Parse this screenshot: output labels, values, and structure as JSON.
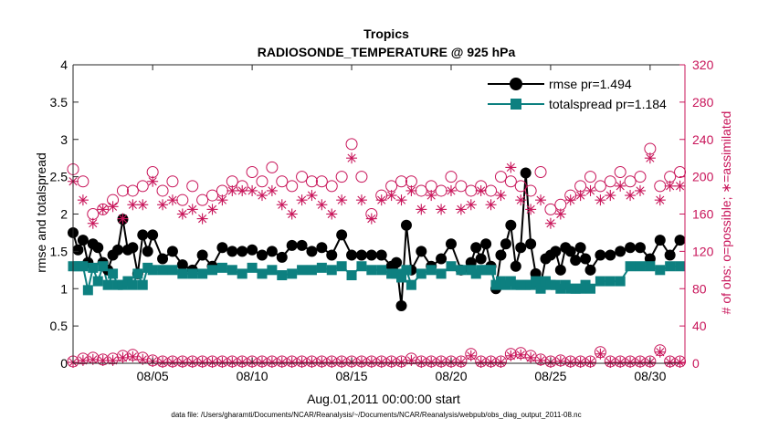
{
  "chart_data": {
    "type": "line",
    "title": "Tropics",
    "subtitle": "RADIOSONDE_TEMPERATURE @ 925 hPa",
    "xlabel": "Aug.01,2011 00:00:00 start",
    "ylabel": "rmse and totalspread",
    "y2label": "# of obs: o=possible; ∗=assimilated",
    "footnote": "data file: /Users/gharamti/Documents/NCAR/Reanalysis/~/Documents/NCAR/Reanalysis/webpub/obs_diag_output_2011-08.nc",
    "xlim": [
      1.0,
      31.75
    ],
    "ylim": [
      0,
      4
    ],
    "y2lim": [
      0,
      320
    ],
    "xticks": [
      5,
      10,
      15,
      20,
      25,
      30
    ],
    "xtick_labels": [
      "08/05",
      "08/10",
      "08/15",
      "08/20",
      "08/25",
      "08/30"
    ],
    "yticks": [
      0,
      0.5,
      1,
      1.5,
      2,
      2.5,
      3,
      3.5,
      4
    ],
    "ytick_labels": [
      "0",
      "0.5",
      "1",
      "1.5",
      "2",
      "2.5",
      "3",
      "3.5",
      "4"
    ],
    "y2ticks": [
      0,
      40,
      80,
      120,
      160,
      200,
      240,
      280,
      320
    ],
    "y2tick_labels": [
      "0",
      "40",
      "80",
      "120",
      "160",
      "200",
      "240",
      "280",
      "320"
    ],
    "legend": {
      "location": "top-right",
      "entries": [
        "rmse pr=1.494",
        "totalspread pr=1.184"
      ]
    },
    "colors": {
      "rmse": "#000000",
      "spread": "#0d8080",
      "obs": "#c8155a"
    },
    "series": [
      {
        "name": "rmse pr=1.494",
        "axis": "left",
        "marker": "circle",
        "x": [
          1.0,
          1.25,
          1.5,
          1.75,
          2.0,
          2.25,
          2.5,
          2.75,
          3.0,
          3.25,
          3.5,
          3.75,
          4.0,
          4.25,
          4.5,
          4.75,
          5.0,
          5.5,
          6.0,
          6.5,
          7.0,
          7.5,
          8.0,
          8.5,
          9.0,
          9.5,
          10.0,
          10.5,
          11.0,
          11.5,
          12.0,
          12.5,
          13.0,
          13.5,
          14.0,
          14.5,
          15.0,
          15.5,
          16.0,
          16.5,
          17.0,
          17.25,
          17.5,
          17.75,
          18.0,
          18.5,
          19.0,
          19.5,
          20.0,
          20.5,
          21.0,
          21.25,
          21.5,
          21.75,
          22.0,
          22.25,
          22.5,
          22.75,
          23.0,
          23.25,
          23.5,
          23.75,
          24.0,
          24.25,
          24.5,
          24.75,
          25.0,
          25.25,
          25.5,
          25.75,
          26.0,
          26.25,
          26.5,
          26.75,
          27.0,
          27.5,
          28.0,
          28.5,
          29.0,
          29.5,
          30.0,
          30.5,
          31.0,
          31.5
        ],
        "values": [
          1.75,
          1.52,
          1.65,
          1.35,
          1.6,
          1.55,
          1.35,
          1.25,
          1.45,
          1.52,
          1.93,
          1.52,
          1.55,
          1.2,
          1.72,
          1.5,
          1.72,
          1.4,
          1.5,
          1.32,
          1.25,
          1.45,
          1.3,
          1.55,
          1.5,
          1.5,
          1.52,
          1.45,
          1.5,
          1.42,
          1.58,
          1.58,
          1.5,
          1.55,
          1.45,
          1.72,
          1.45,
          1.45,
          1.45,
          1.45,
          1.3,
          1.35,
          0.77,
          1.85,
          1.25,
          1.5,
          1.3,
          1.4,
          1.6,
          1.25,
          1.35,
          1.55,
          1.4,
          1.6,
          1.3,
          1.0,
          1.45,
          1.6,
          1.85,
          1.3,
          1.55,
          2.55,
          1.6,
          1.2,
          1.05,
          1.4,
          1.45,
          1.5,
          1.25,
          1.55,
          1.5,
          1.38,
          1.55,
          1.4,
          1.25,
          1.45,
          1.45,
          1.5,
          1.55,
          1.55,
          1.4,
          1.65,
          1.45,
          1.65
        ]
      },
      {
        "name": "totalspread pr=1.184",
        "axis": "left",
        "marker": "square",
        "x": [
          1.0,
          1.25,
          1.5,
          1.75,
          2.0,
          2.25,
          2.5,
          2.75,
          3.0,
          3.25,
          3.5,
          3.75,
          4.0,
          4.25,
          4.5,
          4.75,
          5.0,
          5.5,
          6.0,
          6.5,
          7.0,
          7.5,
          8.0,
          8.5,
          9.0,
          9.5,
          10.0,
          10.5,
          11.0,
          11.5,
          12.0,
          12.5,
          13.0,
          13.5,
          14.0,
          14.5,
          15.0,
          15.5,
          16.0,
          16.5,
          17.0,
          17.25,
          17.5,
          17.75,
          18.0,
          18.5,
          19.0,
          19.5,
          20.0,
          20.5,
          21.0,
          21.25,
          21.5,
          21.75,
          22.0,
          22.25,
          22.5,
          22.75,
          23.0,
          23.25,
          23.5,
          23.75,
          24.0,
          24.25,
          24.5,
          24.75,
          25.0,
          25.25,
          25.5,
          25.75,
          26.0,
          26.25,
          26.5,
          26.75,
          27.0,
          27.5,
          28.0,
          28.5,
          29.0,
          29.5,
          30.0,
          30.5,
          31.0,
          31.5
        ],
        "values": [
          1.3,
          1.3,
          1.3,
          0.98,
          1.28,
          1.1,
          1.3,
          1.05,
          1.2,
          1.05,
          1.05,
          1.1,
          1.05,
          1.2,
          1.05,
          1.28,
          1.25,
          1.25,
          1.25,
          1.2,
          1.2,
          1.2,
          1.25,
          1.28,
          1.25,
          1.2,
          1.28,
          1.2,
          1.25,
          1.18,
          1.2,
          1.25,
          1.25,
          1.28,
          1.25,
          1.3,
          1.18,
          1.3,
          1.25,
          1.25,
          1.2,
          1.2,
          1.15,
          1.25,
          1.05,
          1.2,
          1.25,
          1.2,
          1.3,
          1.25,
          1.25,
          1.2,
          1.25,
          1.25,
          1.25,
          1.05,
          1.1,
          1.05,
          1.1,
          1.05,
          1.05,
          1.05,
          1.05,
          1.1,
          1.0,
          1.1,
          1.05,
          1.05,
          1.0,
          1.05,
          1.0,
          1.0,
          1.0,
          1.05,
          1.0,
          1.1,
          1.1,
          1.1,
          1.3,
          1.3,
          1.3,
          1.25,
          1.3,
          1.3
        ]
      },
      {
        "name": "possible",
        "axis": "right",
        "marker": "open-circle",
        "x": [
          1.0,
          1.5,
          2.0,
          2.5,
          3.0,
          3.5,
          4.0,
          4.5,
          5.0,
          5.5,
          6.0,
          6.5,
          7.0,
          7.5,
          8.0,
          8.5,
          9.0,
          9.5,
          10.0,
          10.5,
          11.0,
          11.5,
          12.0,
          12.5,
          13.0,
          13.5,
          14.0,
          14.5,
          15.0,
          15.5,
          16.0,
          16.5,
          17.0,
          17.5,
          18.0,
          18.5,
          19.0,
          19.5,
          20.0,
          20.5,
          21.0,
          21.5,
          22.0,
          22.5,
          23.0,
          23.5,
          24.0,
          24.5,
          25.0,
          25.5,
          26.0,
          26.5,
          27.0,
          27.5,
          28.0,
          28.5,
          29.0,
          29.5,
          30.0,
          30.5,
          31.0,
          31.5
        ],
        "values": [
          208,
          195,
          160,
          165,
          175,
          185,
          185,
          190,
          205,
          185,
          195,
          175,
          190,
          175,
          180,
          185,
          195,
          190,
          205,
          195,
          210,
          195,
          190,
          200,
          195,
          195,
          190,
          200,
          235,
          200,
          160,
          180,
          190,
          195,
          195,
          185,
          190,
          185,
          200,
          190,
          185,
          190,
          185,
          200,
          195,
          190,
          185,
          205,
          165,
          170,
          180,
          190,
          200,
          190,
          195,
          205,
          195,
          200,
          230,
          190,
          200,
          205
        ]
      },
      {
        "name": "assimilated",
        "axis": "right",
        "marker": "star",
        "x": [
          1.0,
          1.5,
          2.0,
          2.5,
          3.0,
          3.5,
          4.0,
          4.5,
          5.0,
          5.5,
          6.0,
          6.5,
          7.0,
          7.5,
          8.0,
          8.5,
          9.0,
          9.5,
          10.0,
          10.5,
          11.0,
          11.5,
          12.0,
          12.5,
          13.0,
          13.5,
          14.0,
          14.5,
          15.0,
          15.5,
          16.0,
          16.5,
          17.0,
          17.5,
          18.0,
          18.5,
          19.0,
          19.5,
          20.0,
          20.5,
          21.0,
          21.5,
          22.0,
          22.5,
          23.0,
          23.5,
          24.0,
          24.5,
          25.0,
          25.5,
          26.0,
          26.5,
          27.0,
          27.5,
          28.0,
          28.5,
          29.0,
          29.5,
          30.0,
          30.5,
          31.0,
          31.5
        ],
        "values": [
          195,
          175,
          150,
          165,
          168,
          155,
          170,
          170,
          195,
          170,
          175,
          160,
          165,
          155,
          165,
          175,
          185,
          185,
          185,
          180,
          185,
          170,
          160,
          175,
          180,
          170,
          160,
          175,
          220,
          175,
          155,
          175,
          180,
          175,
          185,
          165,
          180,
          165,
          185,
          165,
          170,
          185,
          170,
          180,
          210,
          175,
          165,
          175,
          150,
          160,
          175,
          180,
          185,
          175,
          180,
          190,
          180,
          185,
          220,
          175,
          190,
          190
        ]
      },
      {
        "name": "possible (low)",
        "axis": "right",
        "marker": "open-circle",
        "x": [
          1.0,
          1.5,
          2.0,
          2.5,
          3.0,
          3.5,
          4.0,
          4.5,
          5.0,
          5.5,
          6.0,
          6.5,
          7.0,
          7.5,
          8.0,
          8.5,
          9.0,
          9.5,
          10.0,
          10.5,
          11.0,
          11.5,
          12.0,
          12.5,
          13.0,
          13.5,
          14.0,
          14.5,
          15.0,
          15.5,
          16.0,
          16.5,
          17.0,
          17.5,
          18.0,
          18.5,
          19.0,
          19.5,
          20.0,
          20.5,
          21.0,
          21.5,
          22.0,
          22.5,
          23.0,
          23.5,
          24.0,
          24.5,
          25.0,
          25.5,
          26.0,
          26.5,
          27.0,
          27.5,
          28.0,
          28.5,
          29.0,
          29.5,
          30.0,
          30.5,
          31.0,
          31.5
        ],
        "values": [
          2,
          5,
          6,
          4,
          5,
          8,
          9,
          6,
          3,
          2,
          2,
          2,
          2,
          2,
          2,
          2,
          2,
          2,
          2,
          2,
          2,
          2,
          2,
          2,
          2,
          2,
          2,
          2,
          2,
          2,
          2,
          2,
          2,
          2,
          5,
          2,
          2,
          2,
          2,
          2,
          10,
          2,
          2,
          2,
          10,
          11,
          8,
          4,
          2,
          3,
          2,
          2,
          2,
          12,
          2,
          2,
          2,
          2,
          2,
          14,
          2,
          2
        ]
      },
      {
        "name": "assimilated (low)",
        "axis": "right",
        "marker": "star",
        "x": [
          1.0,
          1.5,
          2.0,
          2.5,
          3.0,
          3.5,
          4.0,
          4.5,
          5.0,
          5.5,
          6.0,
          6.5,
          7.0,
          7.5,
          8.0,
          8.5,
          9.0,
          9.5,
          10.0,
          10.5,
          11.0,
          11.5,
          12.0,
          12.5,
          13.0,
          13.5,
          14.0,
          14.5,
          15.0,
          15.5,
          16.0,
          16.5,
          17.0,
          17.5,
          18.0,
          18.5,
          19.0,
          19.5,
          20.0,
          20.5,
          21.0,
          21.5,
          22.0,
          22.5,
          23.0,
          23.5,
          24.0,
          24.5,
          25.0,
          25.5,
          26.0,
          26.5,
          27.0,
          27.5,
          28.0,
          28.5,
          29.0,
          29.5,
          30.0,
          30.5,
          31.0,
          31.5
        ],
        "values": [
          1,
          3,
          4,
          3,
          3,
          6,
          7,
          4,
          2,
          1,
          1,
          1,
          1,
          1,
          1,
          1,
          1,
          1,
          1,
          1,
          1,
          1,
          1,
          1,
          1,
          1,
          1,
          1,
          1,
          1,
          1,
          1,
          1,
          1,
          3,
          1,
          1,
          1,
          1,
          1,
          8,
          1,
          1,
          1,
          8,
          9,
          6,
          3,
          1,
          2,
          1,
          1,
          1,
          10,
          1,
          1,
          1,
          1,
          1,
          12,
          1,
          1
        ]
      }
    ]
  }
}
